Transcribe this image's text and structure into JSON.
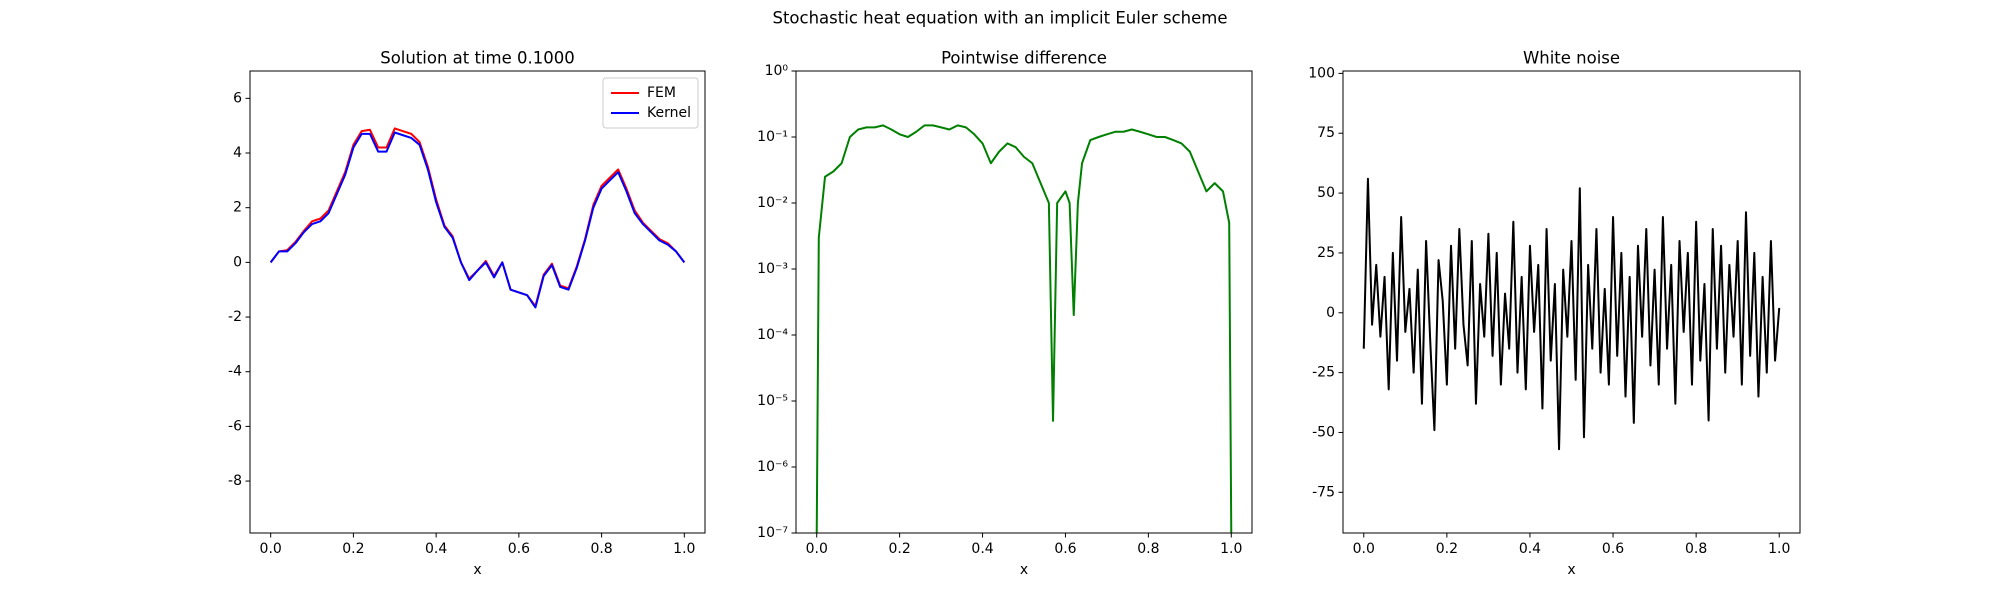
{
  "title": "Stochastic heat equation with an implicit Euler scheme",
  "chart_data": [
    {
      "type": "line",
      "title": "Solution at time 0.1000",
      "x_label": "x",
      "x": [
        0,
        0.02,
        0.04,
        0.06,
        0.08,
        0.1,
        0.12,
        0.14,
        0.16,
        0.18,
        0.2,
        0.22,
        0.24,
        0.26,
        0.28,
        0.3,
        0.32,
        0.34,
        0.36,
        0.38,
        0.4,
        0.42,
        0.44,
        0.46,
        0.48,
        0.5,
        0.52,
        0.54,
        0.56,
        0.58,
        0.6,
        0.62,
        0.64,
        0.66,
        0.68,
        0.7,
        0.72,
        0.74,
        0.76,
        0.78,
        0.8,
        0.82,
        0.84,
        0.86,
        0.88,
        0.9,
        0.92,
        0.94,
        0.96,
        0.98,
        1.0
      ],
      "series": [
        {
          "name": "FEM",
          "color": "#ff0000",
          "values": [
            0,
            0.4,
            0.45,
            0.75,
            1.15,
            1.5,
            1.6,
            1.9,
            2.6,
            3.3,
            4.3,
            4.8,
            4.85,
            4.2,
            4.2,
            4.9,
            4.8,
            4.7,
            4.4,
            3.5,
            2.3,
            1.35,
            0.95,
            0.0,
            -0.6,
            -0.3,
            0.05,
            -0.5,
            0.0,
            -1.0,
            -1.1,
            -1.2,
            -1.6,
            -0.45,
            -0.05,
            -0.85,
            -0.95,
            -0.15,
            0.85,
            2.1,
            2.8,
            3.1,
            3.4,
            2.7,
            1.9,
            1.45,
            1.15,
            0.85,
            0.7,
            0.4,
            0
          ]
        },
        {
          "name": "Kernel",
          "color": "#0000ff",
          "values": [
            0,
            0.4,
            0.4,
            0.7,
            1.1,
            1.4,
            1.5,
            1.8,
            2.5,
            3.2,
            4.2,
            4.7,
            4.7,
            4.05,
            4.05,
            4.75,
            4.65,
            4.55,
            4.3,
            3.4,
            2.2,
            1.3,
            0.9,
            0.0,
            -0.65,
            -0.3,
            0.0,
            -0.55,
            0.0,
            -1.0,
            -1.1,
            -1.2,
            -1.65,
            -0.5,
            -0.1,
            -0.9,
            -1.0,
            -0.2,
            0.8,
            2.0,
            2.7,
            3.0,
            3.3,
            2.6,
            1.8,
            1.4,
            1.1,
            0.8,
            0.65,
            0.4,
            0
          ]
        }
      ],
      "xlim": [
        -0.05,
        1.05
      ],
      "ylim": [
        -9.9,
        7
      ],
      "xticks": [
        {
          "value": 0,
          "label": "0.0"
        },
        {
          "value": 0.2,
          "label": "0.2"
        },
        {
          "value": 0.4,
          "label": "0.4"
        },
        {
          "value": 0.6,
          "label": "0.6"
        },
        {
          "value": 0.8,
          "label": "0.8"
        },
        {
          "value": 1,
          "label": "1.0"
        }
      ],
      "yticks": [
        -8,
        -6,
        -4,
        -2,
        0,
        2,
        4,
        6
      ],
      "legend": "upper right"
    },
    {
      "type": "line",
      "title": "Pointwise difference",
      "x_label": "x",
      "log_y": true,
      "x": [
        0,
        0.005,
        0.02,
        0.04,
        0.06,
        0.08,
        0.1,
        0.12,
        0.14,
        0.16,
        0.18,
        0.2,
        0.22,
        0.24,
        0.26,
        0.28,
        0.3,
        0.32,
        0.34,
        0.36,
        0.38,
        0.4,
        0.42,
        0.44,
        0.46,
        0.48,
        0.5,
        0.52,
        0.54,
        0.56,
        0.57,
        0.58,
        0.6,
        0.61,
        0.62,
        0.63,
        0.64,
        0.66,
        0.68,
        0.7,
        0.72,
        0.74,
        0.76,
        0.78,
        0.8,
        0.82,
        0.84,
        0.86,
        0.88,
        0.9,
        0.92,
        0.94,
        0.96,
        0.98,
        0.995,
        1.0
      ],
      "series": [
        {
          "name": "difference",
          "color": "#008000",
          "values": [
            1e-07,
            0.003,
            0.025,
            0.03,
            0.04,
            0.1,
            0.13,
            0.14,
            0.14,
            0.15,
            0.13,
            0.11,
            0.1,
            0.12,
            0.15,
            0.15,
            0.14,
            0.13,
            0.15,
            0.14,
            0.11,
            0.08,
            0.04,
            0.06,
            0.08,
            0.07,
            0.05,
            0.04,
            0.02,
            0.01,
            5e-06,
            0.01,
            0.015,
            0.01,
            0.0002,
            0.01,
            0.04,
            0.09,
            0.1,
            0.11,
            0.12,
            0.12,
            0.13,
            0.12,
            0.11,
            0.1,
            0.1,
            0.09,
            0.08,
            0.06,
            0.03,
            0.015,
            0.02,
            0.015,
            0.005,
            1e-07
          ]
        }
      ],
      "xlim": [
        -0.05,
        1.05
      ],
      "ylim": [
        1e-07,
        1
      ],
      "xticks": [
        {
          "value": 0,
          "label": "0.0"
        },
        {
          "value": 0.2,
          "label": "0.2"
        },
        {
          "value": 0.4,
          "label": "0.4"
        },
        {
          "value": 0.6,
          "label": "0.6"
        },
        {
          "value": 0.8,
          "label": "0.8"
        },
        {
          "value": 1,
          "label": "1.0"
        }
      ],
      "yticks": [
        {
          "value": 1e-07,
          "label": "10⁻⁷"
        },
        {
          "value": 1e-06,
          "label": "10⁻⁶"
        },
        {
          "value": 1e-05,
          "label": "10⁻⁵"
        },
        {
          "value": 0.0001,
          "label": "10⁻⁴"
        },
        {
          "value": 0.001,
          "label": "10⁻³"
        },
        {
          "value": 0.01,
          "label": "10⁻²"
        },
        {
          "value": 0.1,
          "label": "10⁻¹"
        },
        {
          "value": 1,
          "label": "10⁰"
        }
      ]
    },
    {
      "type": "line",
      "title": "White noise",
      "x_label": "x",
      "x": [
        0,
        0.01,
        0.02,
        0.03,
        0.04,
        0.05,
        0.06,
        0.07,
        0.08,
        0.09,
        0.1,
        0.11,
        0.12,
        0.13,
        0.14,
        0.15,
        0.16,
        0.17,
        0.18,
        0.19,
        0.2,
        0.21,
        0.22,
        0.23,
        0.24,
        0.25,
        0.26,
        0.27,
        0.28,
        0.29,
        0.3,
        0.31,
        0.32,
        0.33,
        0.34,
        0.35,
        0.36,
        0.37,
        0.38,
        0.39,
        0.4,
        0.41,
        0.42,
        0.43,
        0.44,
        0.45,
        0.46,
        0.47,
        0.48,
        0.49,
        0.5,
        0.51,
        0.52,
        0.53,
        0.54,
        0.55,
        0.56,
        0.57,
        0.58,
        0.59,
        0.6,
        0.61,
        0.62,
        0.63,
        0.64,
        0.65,
        0.66,
        0.67,
        0.68,
        0.69,
        0.7,
        0.71,
        0.72,
        0.73,
        0.74,
        0.75,
        0.76,
        0.77,
        0.78,
        0.79,
        0.8,
        0.81,
        0.82,
        0.83,
        0.84,
        0.85,
        0.86,
        0.87,
        0.88,
        0.89,
        0.9,
        0.91,
        0.92,
        0.93,
        0.94,
        0.95,
        0.96,
        0.97,
        0.98,
        0.99,
        1.0
      ],
      "series": [
        {
          "name": "noise",
          "color": "#000000",
          "values": [
            -15,
            56,
            -5,
            20,
            -10,
            15,
            -32,
            25,
            -20,
            40,
            -8,
            10,
            -25,
            18,
            -38,
            30,
            -12,
            -49,
            22,
            5,
            -30,
            28,
            -15,
            35,
            -5,
            -22,
            30,
            -38,
            12,
            -10,
            33,
            -18,
            25,
            -30,
            8,
            -15,
            38,
            -25,
            15,
            -32,
            28,
            -8,
            20,
            -40,
            35,
            -20,
            12,
            -57,
            18,
            -10,
            30,
            -28,
            52,
            -52,
            20,
            -15,
            35,
            -25,
            10,
            -30,
            40,
            -18,
            25,
            -35,
            15,
            -46,
            28,
            -10,
            35,
            -22,
            18,
            -30,
            40,
            -15,
            20,
            -38,
            30,
            -8,
            25,
            -30,
            38,
            -20,
            12,
            -45,
            35,
            -15,
            28,
            -25,
            20,
            -10,
            30,
            -30,
            42,
            -18,
            25,
            -35,
            15,
            -25,
            30,
            -20,
            2
          ]
        }
      ],
      "xlim": [
        -0.05,
        1.05
      ],
      "ylim": [
        -92,
        101
      ],
      "xticks": [
        {
          "value": 0,
          "label": "0.0"
        },
        {
          "value": 0.2,
          "label": "0.2"
        },
        {
          "value": 0.4,
          "label": "0.4"
        },
        {
          "value": 0.6,
          "label": "0.6"
        },
        {
          "value": 0.8,
          "label": "0.8"
        },
        {
          "value": 1,
          "label": "1.0"
        }
      ],
      "yticks": [
        -75,
        -50,
        -25,
        0,
        25,
        50,
        75,
        100
      ]
    }
  ]
}
